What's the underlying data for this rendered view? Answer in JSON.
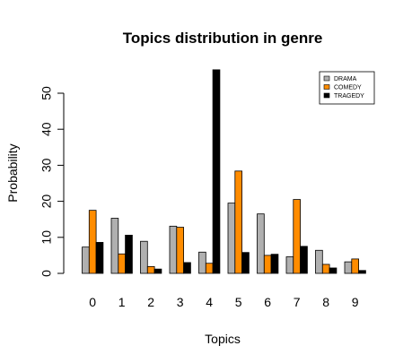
{
  "chart_data": {
    "type": "bar",
    "title": "Topics distribution in genre",
    "xlabel": "Topics",
    "ylabel": "Probability",
    "categories": [
      "0",
      "1",
      "2",
      "3",
      "4",
      "5",
      "6",
      "7",
      "8",
      "9"
    ],
    "ylim": [
      0,
      56
    ],
    "yticks": [
      "0",
      "10",
      "20",
      "30",
      "40",
      "50"
    ],
    "grid": false,
    "legend_position": "top-right",
    "series": [
      {
        "name": "DRAMA",
        "color": "#b0b0b0",
        "values": [
          7.3,
          15.3,
          8.9,
          13.1,
          5.9,
          19.5,
          16.5,
          4.6,
          6.4,
          3.2
        ]
      },
      {
        "name": "COMEDY",
        "color": "#ff8c00",
        "values": [
          17.5,
          5.4,
          1.9,
          12.8,
          2.8,
          28.4,
          5.0,
          20.5,
          2.5,
          4.0
        ]
      },
      {
        "name": "TRAGEDY",
        "color": "#000000",
        "values": [
          8.6,
          10.6,
          1.2,
          3.0,
          56.5,
          5.8,
          5.3,
          7.5,
          1.5,
          0.8
        ]
      }
    ]
  }
}
